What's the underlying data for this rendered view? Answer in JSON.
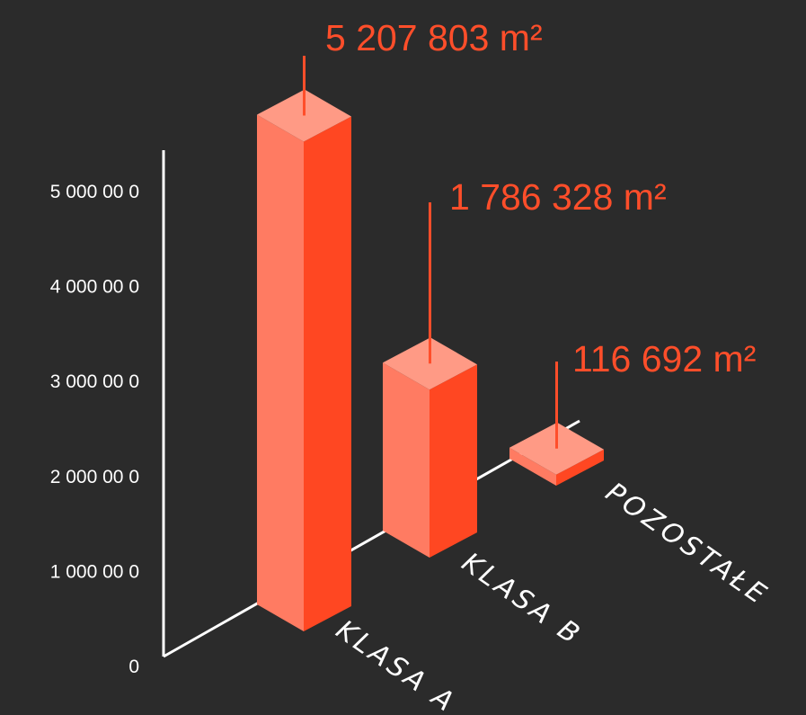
{
  "chart_data": {
    "type": "bar",
    "style": "3d-isometric",
    "categories": [
      "KLASA A",
      "KLASA B",
      "POZOSTAŁE"
    ],
    "values": [
      5207803,
      1786328,
      116692
    ],
    "value_labels": [
      "5 207 803 m²",
      "1 786 328 m²",
      "116 692 m²"
    ],
    "y_ticks": [
      {
        "value": 0,
        "label": "0"
      },
      {
        "value": 1000000,
        "label": "1 000 00 0"
      },
      {
        "value": 2000000,
        "label": "2 000 00 0"
      },
      {
        "value": 3000000,
        "label": "3 000 00 0"
      },
      {
        "value": 4000000,
        "label": "4 000 00 0"
      },
      {
        "value": 5000000,
        "label": "5 000 00 0"
      }
    ],
    "ylim": [
      0,
      5000000
    ],
    "title": "",
    "xlabel": "",
    "ylabel": "",
    "grid": false,
    "colors": {
      "background": "#2b2b2b",
      "bar_front": "#ff7b62",
      "bar_side": "#ff4722",
      "bar_top": "#ff9a85",
      "label": "#ff4e2a",
      "axis": "#ffffff",
      "text": "#ffffff"
    }
  }
}
